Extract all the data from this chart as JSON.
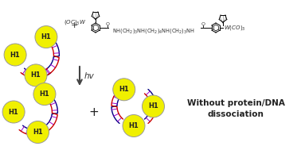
{
  "background_color": "#ffffff",
  "histone_color": "#f0f000",
  "histone_edge_color": "#999999",
  "histone_label": "H1",
  "histone_label_fontsize": 6,
  "histone_label_color": "#222222",
  "dna_color1": "#cc0000",
  "dna_color2": "#000080",
  "dna_color3": "#9900cc",
  "arrow_color": "#555555",
  "text_hv": "hv",
  "text_plus": "+",
  "text_without": "Without protein/DNA\ndissociation",
  "text_without_fontsize": 7.5,
  "fig_width": 3.78,
  "fig_height": 1.89,
  "dpi": 100
}
